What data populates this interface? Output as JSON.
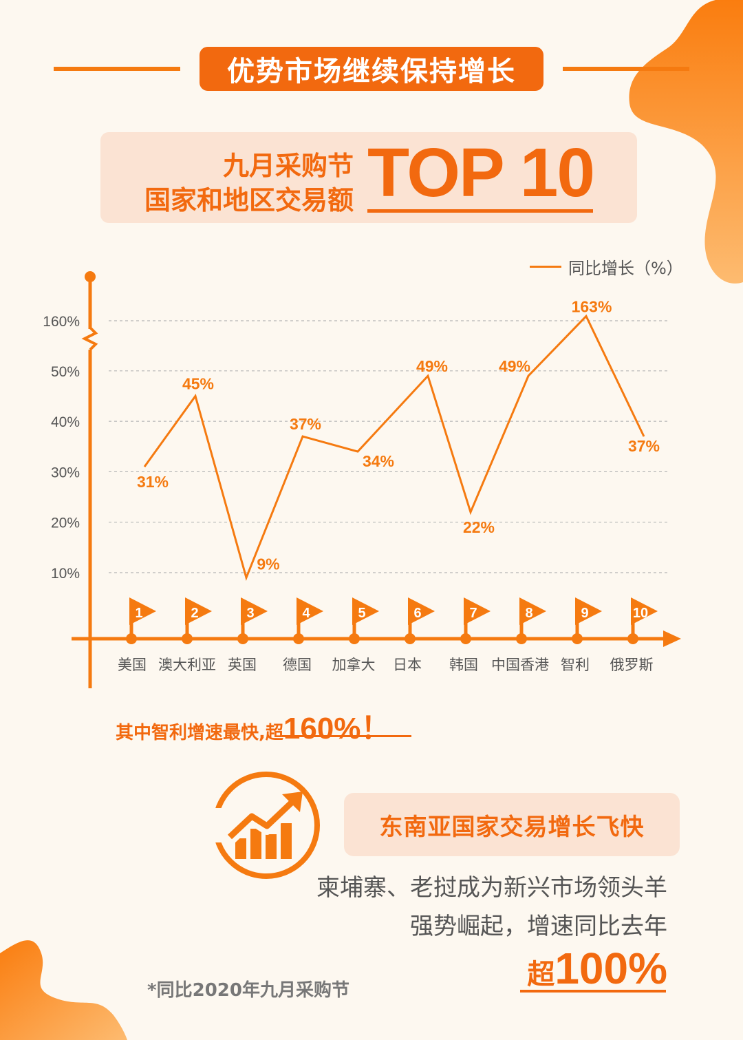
{
  "header": {
    "badge": "优势市场继续保持增长"
  },
  "title": {
    "line1": "九月采购节",
    "line2": "国家和地区交易额",
    "big": "TOP 10"
  },
  "chart_data": {
    "type": "line",
    "legend": "同比增长（%）",
    "yticks": [
      "160%",
      "50%",
      "40%",
      "30%",
      "20%",
      "10%"
    ],
    "categories": [
      "美国",
      "澳大利亚",
      "英国",
      "德国",
      "加拿大",
      "日本",
      "韩国",
      "中国香港",
      "智利",
      "俄罗斯"
    ],
    "ranks": [
      "1",
      "2",
      "3",
      "4",
      "5",
      "6",
      "7",
      "8",
      "9",
      "10"
    ],
    "values": [
      31,
      45,
      9,
      37,
      34,
      49,
      22,
      49,
      163,
      37
    ],
    "labels": [
      "31%",
      "45%",
      "9%",
      "37%",
      "34%",
      "49%",
      "22%",
      "49%",
      "163%",
      "37%"
    ],
    "axis_break": "between 50% and 160%",
    "grid": true,
    "color": "#f57a10"
  },
  "callout": {
    "prefix": "其中智利增速最快,超",
    "value": "160%！"
  },
  "southeast_asia": {
    "title": "东南亚国家交易增长飞快",
    "line1": "柬埔寨、老挝成为新兴市场领头羊",
    "line2": "强势崛起，增速同比去年",
    "prefix": "超",
    "value": "100%"
  },
  "footnote": "*同比2020年九月采购节",
  "colors": {
    "accent": "#f57a10",
    "deep": "#f2690f",
    "panel": "#fbe3d3",
    "background": "#fdf8f0"
  }
}
